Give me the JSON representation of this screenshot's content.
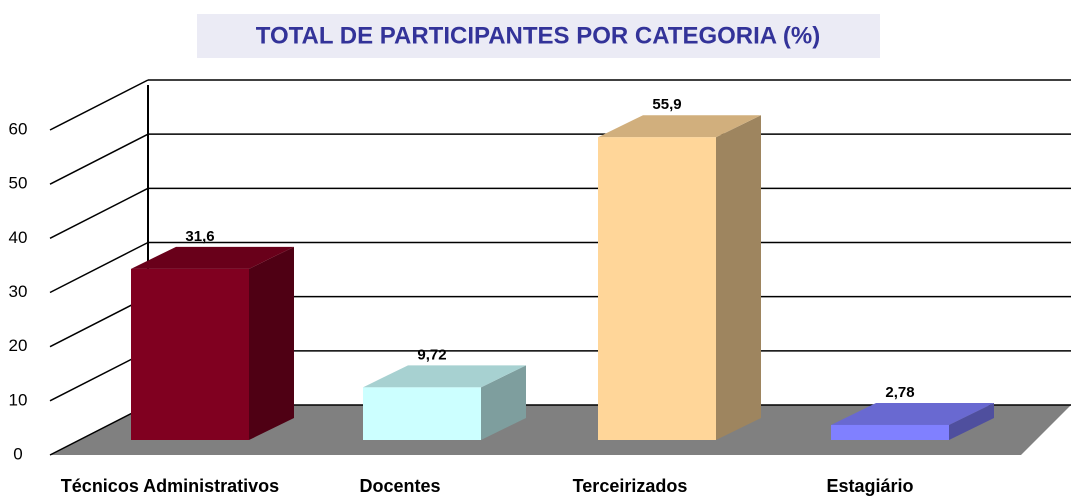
{
  "chart_data": {
    "type": "bar3d",
    "title": "TOTAL DE PARTICIPANTES POR CATEGORIA (%)",
    "categories": [
      "Técnicos Administrativos",
      "Docentes",
      "Terceirizados",
      "Estagiário"
    ],
    "values": [
      31.6,
      9.72,
      55.9,
      2.78
    ],
    "value_labels": [
      "31,6",
      "9,72",
      "55,9",
      "2,78"
    ],
    "colors": [
      "#800020",
      "#ccffff",
      "#ffd699",
      "#8080ff"
    ],
    "ylim": [
      0,
      60
    ],
    "yticks": [
      0,
      10,
      20,
      30,
      40,
      50,
      60
    ],
    "grid": true
  }
}
